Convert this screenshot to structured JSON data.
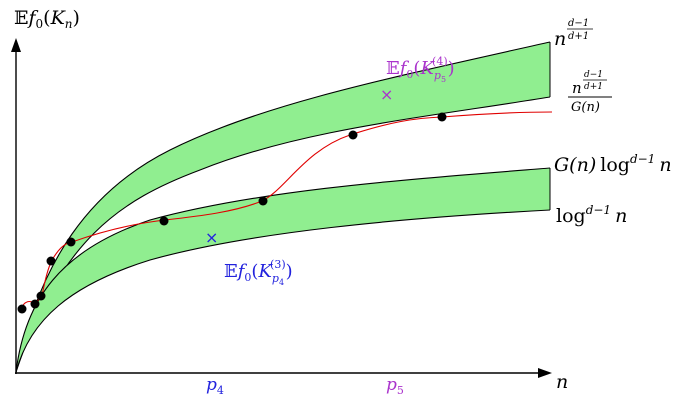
{
  "axes": {
    "y_label": {
      "bb": "𝔼",
      "f": "f",
      "sub0": "0",
      "open": "(",
      "K": "K",
      "subn": "n",
      "close": ")"
    },
    "x_label": "n"
  },
  "ticks": {
    "p4": {
      "p": "p",
      "sub": "4",
      "color": "#2222dd"
    },
    "p5": {
      "p": "p",
      "sub": "5",
      "color": "#aa33cc"
    }
  },
  "curve_labels": {
    "upper_top": {
      "base": "n",
      "exp": "d−1 / d+1",
      "num": "d−1",
      "den": "d+1"
    },
    "upper_bottom": {
      "base": "n",
      "num": "d−1",
      "den": "d+1",
      "denominator": "G(n)"
    },
    "lower_top": {
      "G": "G(n)",
      "log": "log",
      "exp": "d−1",
      "n": "n"
    },
    "lower_bottom": {
      "log": "log",
      "exp": "d−1",
      "n": "n"
    }
  },
  "annotations": {
    "k3": {
      "bb": "𝔼",
      "f": "f",
      "sub0": "0",
      "open": "(",
      "K": "K",
      "sub": "p",
      "subsub": "4",
      "sup": "(3)",
      "close": ")",
      "color": "#2222dd",
      "marker": "×"
    },
    "k4": {
      "bb": "𝔼",
      "f": "f",
      "sub0": "0",
      "open": "(",
      "K": "K",
      "sub": "p",
      "subsub": "5",
      "sup": "(4)",
      "close": ")",
      "color": "#aa33cc",
      "marker": "×"
    }
  },
  "colors": {
    "band_fill": "#90ee90",
    "curve": "#e00000",
    "dot": "#000000",
    "axis": "#000000"
  }
}
